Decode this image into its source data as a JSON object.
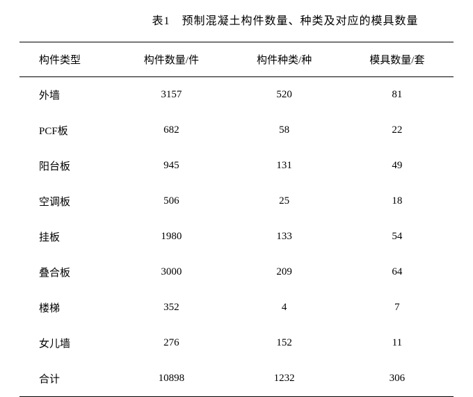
{
  "caption": "表1　预制混凝土构件数量、种类及对应的模具数量",
  "table": {
    "columns": [
      "构件类型",
      "构件数量/件",
      "构件种类/种",
      "模具数量/套"
    ],
    "rows": [
      [
        "外墙",
        "3157",
        "520",
        "81"
      ],
      [
        "PCF板",
        "682",
        "58",
        "22"
      ],
      [
        "阳台板",
        "945",
        "131",
        "49"
      ],
      [
        "空调板",
        "506",
        "25",
        "18"
      ],
      [
        "挂板",
        "1980",
        "133",
        "54"
      ],
      [
        "叠合板",
        "3000",
        "209",
        "64"
      ],
      [
        "楼梯",
        "352",
        "4",
        "7"
      ],
      [
        "女儿墙",
        "276",
        "152",
        "11"
      ],
      [
        "合计",
        "10898",
        "1232",
        "306"
      ]
    ],
    "border_color": "#000000",
    "caption_fontsize": 16,
    "cell_fontsize": 15,
    "background_color": "#ffffff",
    "text_color": "#000000"
  }
}
